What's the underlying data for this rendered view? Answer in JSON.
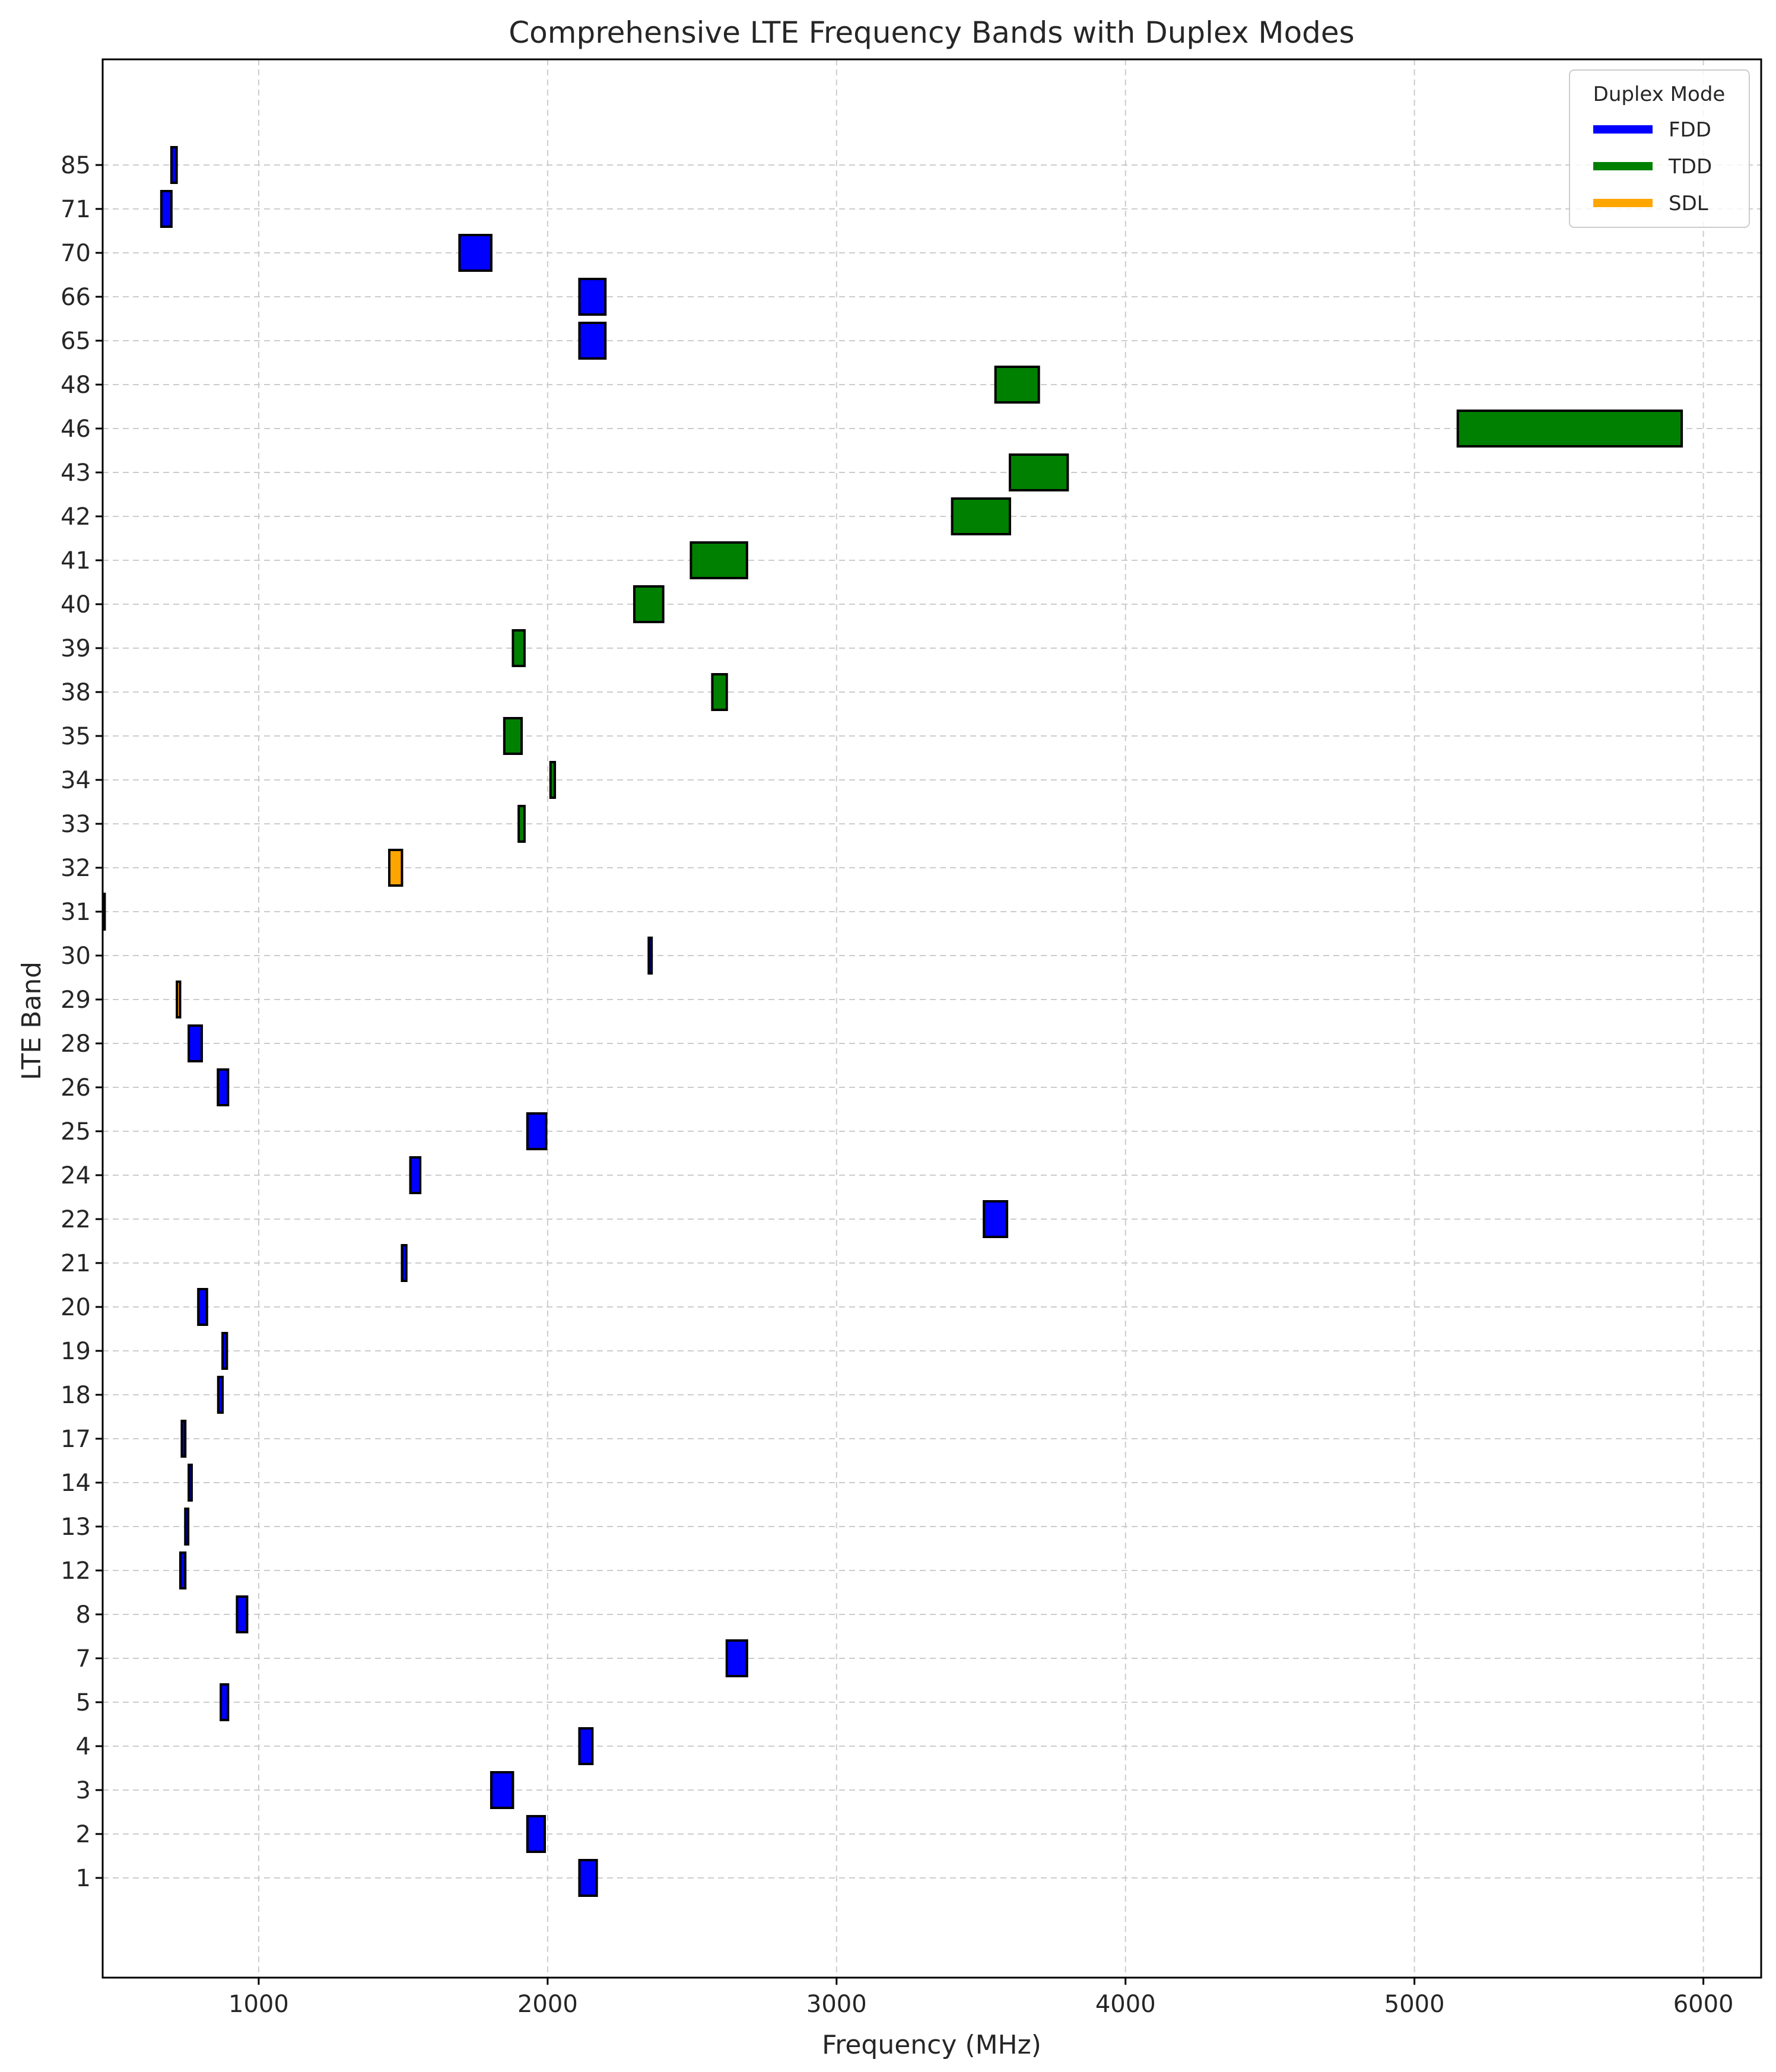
{
  "chart_data": {
    "type": "bar",
    "orientation": "horizontal-range",
    "title": "Comprehensive LTE Frequency Bands with Duplex Modes",
    "xlabel": "Frequency (MHz)",
    "ylabel": "LTE Band",
    "xlim": [
      460,
      6200
    ],
    "xticks": [
      1000,
      2000,
      3000,
      4000,
      5000,
      6000
    ],
    "grid": true,
    "legend": {
      "title": "Duplex Mode",
      "position": "top-right",
      "entries": [
        {
          "label": "FDD",
          "color": "#0000ff"
        },
        {
          "label": "TDD",
          "color": "#008000"
        },
        {
          "label": "SDL",
          "color": "#ffa500"
        }
      ]
    },
    "colors": {
      "FDD": "#0000ff",
      "TDD": "#008000",
      "SDL": "#ffa500"
    },
    "bands": [
      {
        "band": "1",
        "start": 2110,
        "end": 2170,
        "mode": "FDD"
      },
      {
        "band": "2",
        "start": 1930,
        "end": 1990,
        "mode": "FDD"
      },
      {
        "band": "3",
        "start": 1805,
        "end": 1880,
        "mode": "FDD"
      },
      {
        "band": "4",
        "start": 2110,
        "end": 2155,
        "mode": "FDD"
      },
      {
        "band": "5",
        "start": 869,
        "end": 894,
        "mode": "FDD"
      },
      {
        "band": "7",
        "start": 2620,
        "end": 2690,
        "mode": "FDD"
      },
      {
        "band": "8",
        "start": 925,
        "end": 960,
        "mode": "FDD"
      },
      {
        "band": "12",
        "start": 729,
        "end": 746,
        "mode": "FDD"
      },
      {
        "band": "13",
        "start": 746,
        "end": 756,
        "mode": "FDD"
      },
      {
        "band": "14",
        "start": 758,
        "end": 768,
        "mode": "FDD"
      },
      {
        "band": "17",
        "start": 734,
        "end": 746,
        "mode": "FDD"
      },
      {
        "band": "18",
        "start": 860,
        "end": 875,
        "mode": "FDD"
      },
      {
        "band": "19",
        "start": 875,
        "end": 890,
        "mode": "FDD"
      },
      {
        "band": "20",
        "start": 791,
        "end": 821,
        "mode": "FDD"
      },
      {
        "band": "21",
        "start": 1496,
        "end": 1511,
        "mode": "FDD"
      },
      {
        "band": "22",
        "start": 3510,
        "end": 3590,
        "mode": "FDD"
      },
      {
        "band": "24",
        "start": 1525,
        "end": 1559,
        "mode": "FDD"
      },
      {
        "band": "25",
        "start": 1930,
        "end": 1995,
        "mode": "FDD"
      },
      {
        "band": "26",
        "start": 859,
        "end": 894,
        "mode": "FDD"
      },
      {
        "band": "28",
        "start": 758,
        "end": 803,
        "mode": "FDD"
      },
      {
        "band": "29",
        "start": 717,
        "end": 728,
        "mode": "SDL"
      },
      {
        "band": "30",
        "start": 2350,
        "end": 2360,
        "mode": "FDD"
      },
      {
        "band": "31",
        "start": 462,
        "end": 467,
        "mode": "FDD"
      },
      {
        "band": "32",
        "start": 1452,
        "end": 1496,
        "mode": "SDL"
      },
      {
        "band": "33",
        "start": 1900,
        "end": 1920,
        "mode": "TDD"
      },
      {
        "band": "34",
        "start": 2010,
        "end": 2025,
        "mode": "TDD"
      },
      {
        "band": "35",
        "start": 1850,
        "end": 1910,
        "mode": "TDD"
      },
      {
        "band": "38",
        "start": 2570,
        "end": 2620,
        "mode": "TDD"
      },
      {
        "band": "39",
        "start": 1880,
        "end": 1920,
        "mode": "TDD"
      },
      {
        "band": "40",
        "start": 2300,
        "end": 2400,
        "mode": "TDD"
      },
      {
        "band": "41",
        "start": 2496,
        "end": 2690,
        "mode": "TDD"
      },
      {
        "band": "42",
        "start": 3400,
        "end": 3600,
        "mode": "TDD"
      },
      {
        "band": "43",
        "start": 3600,
        "end": 3800,
        "mode": "TDD"
      },
      {
        "band": "46",
        "start": 5150,
        "end": 5925,
        "mode": "TDD"
      },
      {
        "band": "48",
        "start": 3550,
        "end": 3700,
        "mode": "TDD"
      },
      {
        "band": "65",
        "start": 2110,
        "end": 2200,
        "mode": "FDD"
      },
      {
        "band": "66",
        "start": 2110,
        "end": 2200,
        "mode": "FDD"
      },
      {
        "band": "70",
        "start": 1695,
        "end": 1805,
        "mode": "FDD"
      },
      {
        "band": "71",
        "start": 663,
        "end": 698,
        "mode": "FDD"
      },
      {
        "band": "85",
        "start": 698,
        "end": 716,
        "mode": "FDD"
      }
    ]
  }
}
